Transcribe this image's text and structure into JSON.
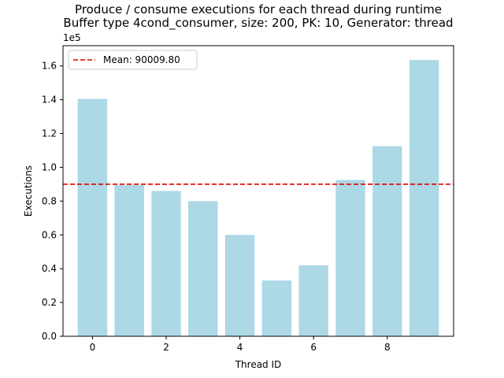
{
  "chart_data": {
    "type": "bar",
    "title": "Produce / consume executions for each thread during runtime",
    "subtitle": "Buffer type 4cond_consumer, size: 200, PK: 10, Generator: thread",
    "xlabel": "Thread ID",
    "ylabel": "Executions",
    "y_offset_label": "1e5",
    "x": [
      0,
      1,
      2,
      3,
      4,
      5,
      6,
      7,
      8,
      9
    ],
    "values": [
      140500,
      89500,
      86000,
      80000,
      60000,
      33000,
      42000,
      92500,
      112500,
      163500
    ],
    "xlim": [
      -0.8,
      9.8
    ],
    "ylim": [
      0,
      172000
    ],
    "x_ticks": [
      0,
      2,
      4,
      6,
      8
    ],
    "x_tick_labels": [
      "0",
      "2",
      "4",
      "6",
      "8"
    ],
    "y_ticks": [
      0,
      20000,
      40000,
      60000,
      80000,
      100000,
      120000,
      140000,
      160000
    ],
    "y_tick_labels": [
      "0.0",
      "0.2",
      "0.4",
      "0.6",
      "0.8",
      "1.0",
      "1.2",
      "1.4",
      "1.6"
    ],
    "bar_color": "#add8e6",
    "mean": 90009.8,
    "mean_color": "#e00000",
    "legend": {
      "entries": [
        "Mean: 90009.80"
      ],
      "placement": "top-left"
    },
    "grid": false
  }
}
